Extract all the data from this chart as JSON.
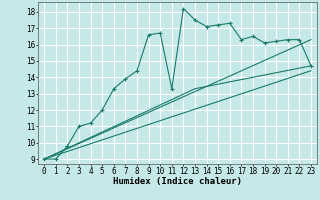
{
  "xlabel": "Humidex (Indice chaleur)",
  "ylabel": "",
  "bg_color": "#c5e8e8",
  "grid_color": "#ffffff",
  "line_color": "#1a7a6a",
  "xlim": [
    -0.5,
    23.5
  ],
  "ylim": [
    8.7,
    18.6
  ],
  "xticks": [
    0,
    1,
    2,
    3,
    4,
    5,
    6,
    7,
    8,
    9,
    10,
    11,
    12,
    13,
    14,
    15,
    16,
    17,
    18,
    19,
    20,
    21,
    22,
    23
  ],
  "yticks": [
    9,
    10,
    11,
    12,
    13,
    14,
    15,
    16,
    17,
    18
  ],
  "line1_x": [
    0,
    1,
    2,
    3,
    4,
    5,
    6,
    7,
    8,
    9,
    10,
    11,
    12,
    13,
    14,
    15,
    16,
    17,
    18,
    19,
    20,
    21,
    22,
    23
  ],
  "line1_y": [
    9,
    9,
    9.8,
    11.0,
    11.2,
    12.0,
    13.3,
    13.9,
    14.4,
    16.6,
    16.7,
    13.3,
    18.2,
    17.5,
    17.1,
    17.2,
    17.3,
    16.3,
    16.5,
    16.1,
    16.2,
    16.3,
    16.3,
    14.7
  ],
  "line2_x": [
    0,
    13,
    23
  ],
  "line2_y": [
    9,
    13.3,
    14.7
  ],
  "line3_x": [
    0,
    23
  ],
  "line3_y": [
    9,
    16.3
  ],
  "line4_x": [
    0,
    23
  ],
  "line4_y": [
    9,
    14.4
  ]
}
